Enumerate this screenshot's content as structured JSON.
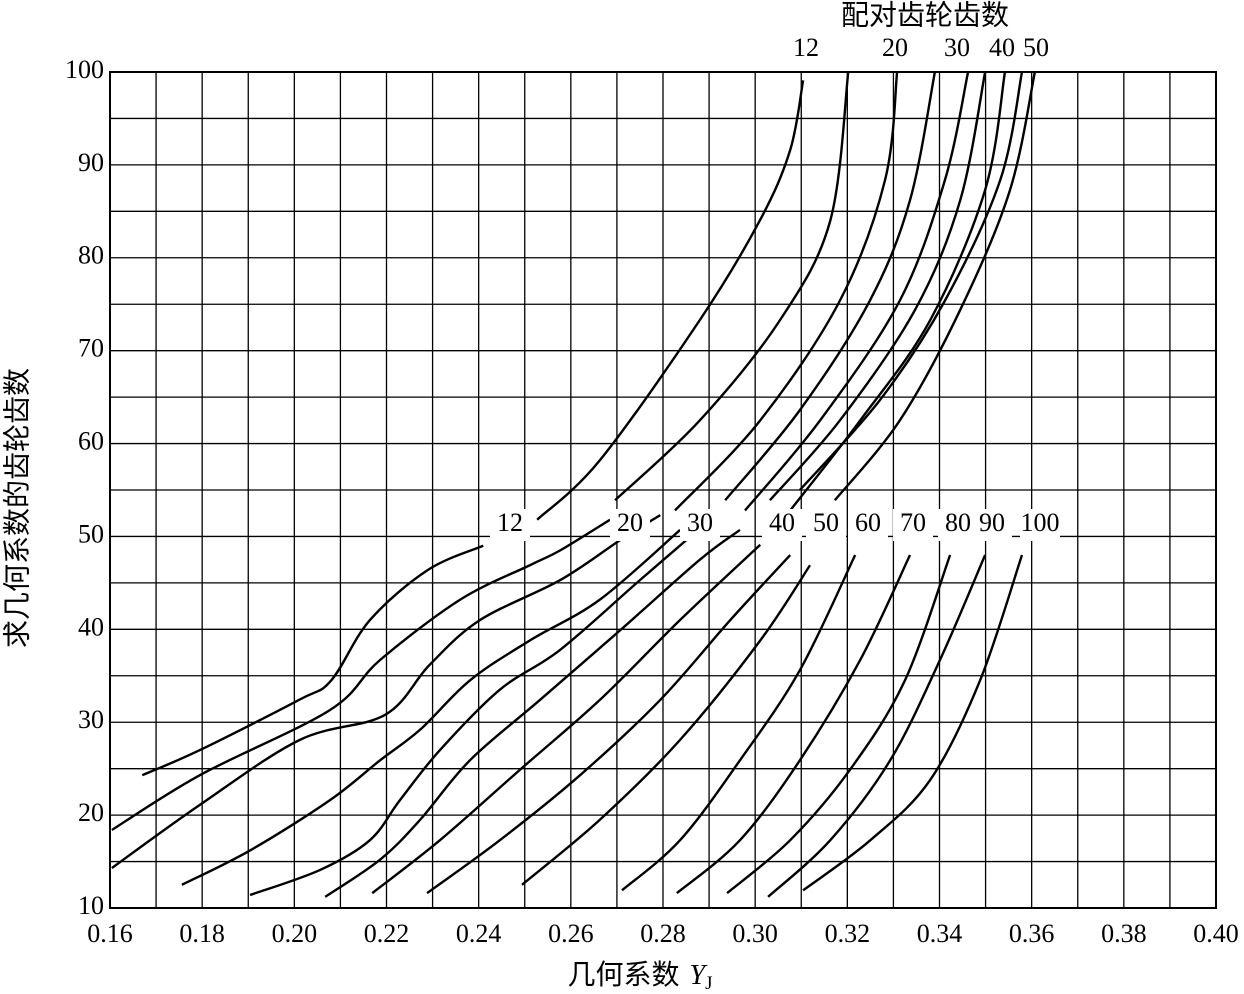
{
  "chart_data": {
    "type": "line",
    "top_title": "配对齿轮齿数",
    "top_labels": [
      "12",
      "20",
      "30",
      "40",
      "50"
    ],
    "y_label": "求几何系数的齿轮齿数",
    "x_label": "几何系数",
    "x_label_symbol": "Y",
    "x_label_subscript": "J",
    "xlim": [
      0.16,
      0.4
    ],
    "ylim": [
      10,
      100
    ],
    "xticks": [
      0.16,
      0.18,
      {
        "value": 0.2,
        "label": "0.20"
      },
      0.22,
      0.24,
      0.26,
      0.28,
      {
        "value": 0.3,
        "label": "0.30"
      },
      0.32,
      0.34,
      0.36,
      0.38,
      {
        "value": 0.4,
        "label": "0.40"
      }
    ],
    "yticks": [
      10,
      20,
      30,
      40,
      50,
      60,
      70,
      80,
      90,
      100
    ],
    "x_minor_ticks": [
      0.17,
      0.19,
      0.21,
      0.23,
      0.25,
      0.27,
      0.29,
      0.31,
      0.33,
      0.35,
      0.37,
      0.39
    ],
    "y_minor_ticks": [
      15,
      25,
      35,
      45,
      55,
      65,
      75,
      85,
      95
    ],
    "grid": true,
    "color": "#000000",
    "series": [
      {
        "name": "12",
        "x": [
          0.167,
          0.1795,
          0.201,
          0.208,
          0.2164,
          0.229,
          0.241,
          null,
          0.2527,
          0.2663,
          0.288,
          0.301,
          0.3076,
          0.3104
        ],
        "values": [
          24.3,
          27,
          32.4,
          34.5,
          41,
          46.4,
          49,
          null,
          51.8,
          58.2,
          73.3,
          84,
          91.6,
          99.1
        ]
      },
      {
        "name": "20",
        "x": [
          0.1604,
          0.1795,
          0.2077,
          0.2186,
          0.236,
          0.2511,
          0.2577,
          0.2685,
          null,
          0.2696,
          0.288,
          0.3054,
          0.3163,
          0.3202
        ],
        "values": [
          18.4,
          24.3,
          31.3,
          36.7,
          43.2,
          46.9,
          48.5,
          51.8,
          null,
          53.9,
          62.5,
          73.3,
          84,
          100
        ]
      },
      {
        "name": "30",
        "x": [
          0.1604,
          0.1795,
          0.2012,
          0.2197,
          0.2294,
          0.2403,
          0.2577,
          0.2707,
          0.2794,
          null,
          0.2826,
          0.3011,
          0.3184,
          0.3282,
          0.3308
        ],
        "values": [
          14.3,
          21.1,
          28.1,
          30.8,
          36.2,
          41,
          45.3,
          49.6,
          52.3,
          null,
          52.8,
          62.5,
          75.4,
          88.4,
          100
        ]
      },
      {
        "name": "40",
        "x": [
          0.1756,
          0.1904,
          0.2077,
          0.2186,
          0.2273,
          0.2381,
          0.2511,
          0.2663,
          0.2837,
          null,
          0.2935,
          0.3097,
          0.3249,
          0.3336,
          0.339
        ],
        "values": [
          12.5,
          16.2,
          21.6,
          25.9,
          29.2,
          34.5,
          38.8,
          43.2,
          50.7,
          null,
          53.9,
          63.6,
          75.4,
          86.2,
          100
        ]
      },
      {
        "name": "50",
        "x": [
          0.1904,
          0.2056,
          0.2164,
          0.2229,
          0.2316,
          0.2446,
          0.2577,
          0.275,
          0.2902,
          null,
          0.2978,
          0.3141,
          0.3314,
          0.3412,
          0.3462
        ],
        "values": [
          11.4,
          14.1,
          17.3,
          21.6,
          27,
          33.5,
          37.8,
          45.3,
          51.8,
          null,
          52.8,
          62.5,
          75.4,
          88.4,
          100
        ]
      },
      {
        "x": [
          0.2067,
          0.2186,
          0.2273,
          0.2381,
          0.2533,
          0.2707,
          0.288,
          0.2967,
          null,
          0.3032,
          0.3184,
          0.3347,
          0.3445,
          0.3499
        ],
        "values": [
          11.2,
          15.2,
          19.5,
          25.9,
          32.4,
          39.9,
          47.5,
          50.7,
          null,
          53.9,
          62.5,
          74.4,
          86.2,
          100
        ]
      },
      {
        "x": [
          0.2169,
          0.2316,
          0.249,
          0.2663,
          0.2837,
          0.3011,
          null,
          0.3076,
          0.3228,
          0.338,
          0.3499,
          0.3542
        ],
        "values": [
          11.6,
          17.3,
          24.9,
          32.4,
          41,
          49.1,
          null,
          52.8,
          62.5,
          73.3,
          87.3,
          100
        ]
      },
      {
        "x": [
          0.2288,
          0.2446,
          0.262,
          0.2794,
          0.2946,
          0.3076,
          null,
          0.3097,
          0.3271,
          0.3412,
          0.3532,
          0.3579
        ],
        "values": [
          11.6,
          17.3,
          24.3,
          32.4,
          41,
          48,
          null,
          55,
          64.7,
          75.4,
          88.4,
          100
        ]
      },
      {
        "x": [
          0.2494,
          0.2663,
          0.2837,
          0.3011,
          0.3119,
          null,
          0.3173,
          0.3314,
          0.3445,
          0.3553,
          0.3607
        ],
        "values": [
          12.5,
          19.5,
          28.1,
          38.8,
          46.9,
          null,
          53.9,
          62.5,
          74.4,
          87.3,
          100
        ]
      },
      {
        "name": "60",
        "x": [
          0.2711,
          0.2837,
          0.2967,
          0.3097,
          0.3217
        ],
        "values": [
          11.9,
          17.3,
          25.9,
          35.6,
          48
        ]
      },
      {
        "name": "70",
        "x": [
          0.283,
          0.2967,
          0.3097,
          0.3228,
          0.3336
        ],
        "values": [
          11.6,
          17.3,
          25.9,
          36.7,
          48
        ]
      },
      {
        "name": "80",
        "x": [
          0.2939,
          0.3076,
          0.3206,
          0.3325,
          0.3423
        ],
        "values": [
          11.6,
          17.3,
          24.9,
          34.5,
          48
        ]
      },
      {
        "name": "90",
        "x": [
          0.3028,
          0.3163,
          0.3293,
          0.3401,
          0.3499
        ],
        "values": [
          11.2,
          17.3,
          25.9,
          36.7,
          48
        ]
      },
      {
        "name": "100",
        "x": [
          0.3104,
          0.325,
          0.338,
          0.3488,
          0.3579
        ],
        "values": [
          11.9,
          17.3,
          23.8,
          34.5,
          48
        ]
      }
    ]
  }
}
